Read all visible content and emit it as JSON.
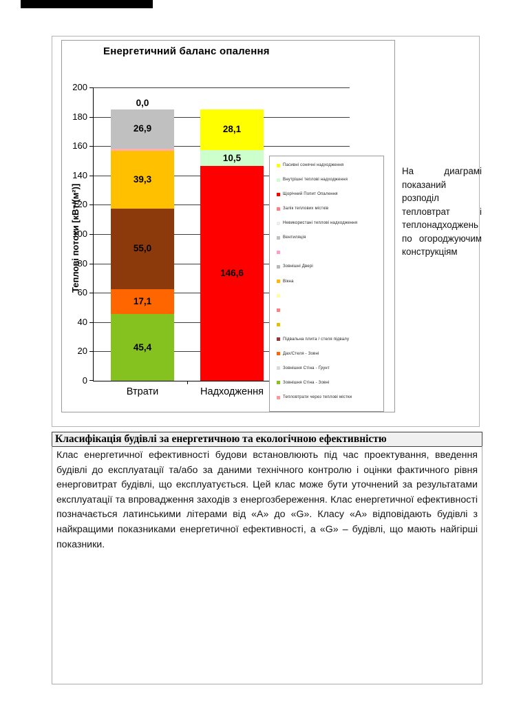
{
  "page": {
    "right_note": "На диаграмі показаний розподіл тепловтрат і теплонадходжень по огороджуючим конструкціям"
  },
  "chart_data": {
    "type": "bar",
    "stacked": true,
    "title": "Енергетичний баланс опалення",
    "ylabel": "Теплові потоки [кВт/(м²)]",
    "ylim": [
      0,
      200
    ],
    "ytick_step": 20,
    "grid": true,
    "legend_position": "right",
    "categories": [
      "Втрати",
      "Надходження"
    ],
    "bars": [
      {
        "category": "Втрати",
        "segments": [
          {
            "label": "0,0",
            "value": 0,
            "color": null,
            "size": "small"
          },
          {
            "label": "45,4",
            "value": 45.4,
            "color": "#85C220",
            "size": "big"
          },
          {
            "label": "0,0",
            "value": 0,
            "color": null,
            "size": "small"
          },
          {
            "label": "17,1",
            "value": 17.1,
            "color": "#FF6600",
            "size": "big"
          },
          {
            "label": "55,0",
            "value": 55.0,
            "color": "#8C3A0C",
            "size": "big"
          },
          {
            "label": "0,0",
            "value": 0,
            "color": null,
            "size": "small"
          },
          {
            "label": "39,3",
            "value": 39.3,
            "color": "#FFC000",
            "size": "big"
          },
          {
            "label": "1,5",
            "value": 1.5,
            "color": "#FFAFAF",
            "size": "small"
          },
          {
            "label": "26,9",
            "value": 26.9,
            "color": "#C0C0C0",
            "size": "big"
          },
          {
            "label": "0,0",
            "value": 0,
            "color": null,
            "size": "big"
          }
        ]
      },
      {
        "category": "Надходження",
        "segments": [
          {
            "label": "0,0",
            "value": 0,
            "color": null,
            "size": "small"
          },
          {
            "label": "146,6",
            "value": 146.6,
            "color": "#FE0000",
            "size": "big"
          },
          {
            "label": "10,5",
            "value": 10.5,
            "color": "#CCFFCC",
            "size": "big"
          },
          {
            "label": "28,1",
            "value": 28.1,
            "color": "#FFFF00",
            "size": "big"
          }
        ]
      }
    ],
    "legend": [
      {
        "label": "Пасивні сонячні надходження",
        "color": "#FFFF00"
      },
      {
        "label": "Внутрішні теплові надходження",
        "color": "#CCFFCC"
      },
      {
        "label": "Щорічний Попит Опалення",
        "color": "#FE0000"
      },
      {
        "label": "Залік теплових містків",
        "color": "#FF8080"
      },
      {
        "label": "Невикористані теплові надходження",
        "color": "#EDEDED"
      },
      {
        "label": "Вентиляція",
        "color": "#C0C0C0"
      },
      {
        "label": "",
        "color": "#FF9DC8"
      },
      {
        "label": "Зовнішні Двері",
        "color": "#B8B8B8"
      },
      {
        "label": "Вікна",
        "color": "#FFB900"
      },
      {
        "label": "",
        "color": "#FFFF9E"
      },
      {
        "label": "",
        "color": "#FF8080"
      },
      {
        "label": "",
        "color": "#E3C000"
      },
      {
        "label": "Підвальна плита / стеля підвалу",
        "color": "#953735"
      },
      {
        "label": "Дах/Стеля - Зовні",
        "color": "#FF6600"
      },
      {
        "label": "Зовнішня Стіна - Ґрунт",
        "color": "#D9D9D9"
      },
      {
        "label": "Зовнішня Стіна - Зовні",
        "color": "#85C220"
      },
      {
        "label": "Тепловтрати через теплові містки",
        "color": "#FF9999"
      }
    ]
  },
  "classification": {
    "title": "Класифікація будівлі за енергетичною та екологічною ефективністю",
    "body": "Клас енергетичної ефективності будови встановлюють під час проектування, введення будівлі до експлуатації та/або за даними технічного контролю і оцінки фактичного рівня енерговитрат будівлі, що експлуатується. Цей клас може бути уточнений за результатами експлуатації та впровадження заходів з енергозбереження. Клас енергетичної ефективності позначається латинськими літерами від «А» до «G». Класу «А» відповідають будівлі з найкращими показниками енергетичної ефективності, а «G» – будівлі, що мають найгірші показники."
  }
}
